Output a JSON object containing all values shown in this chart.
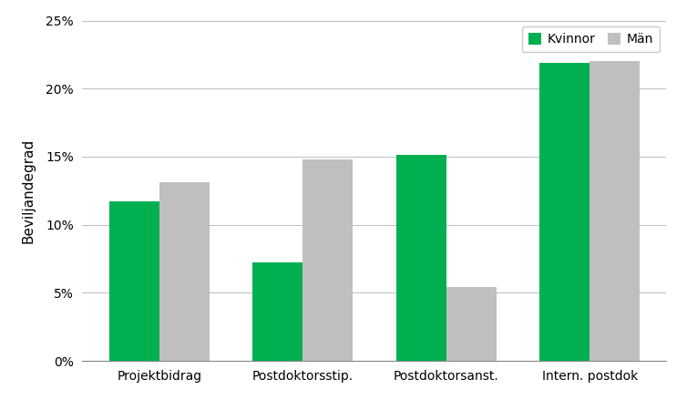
{
  "categories": [
    "Projektbidrag",
    "Postdoktorsstip.",
    "Postdoktorsanst.",
    "Intern. postdok"
  ],
  "kvinnor": [
    0.117,
    0.072,
    0.151,
    0.219
  ],
  "man": [
    0.131,
    0.148,
    0.054,
    0.22
  ],
  "color_kvinnor": "#00b050",
  "color_man": "#bfbfbf",
  "ylabel": "Beviljandegrad",
  "ylim": [
    0,
    0.25
  ],
  "yticks": [
    0,
    0.05,
    0.1,
    0.15,
    0.2,
    0.25
  ],
  "legend_labels": [
    "Kvinnor",
    "Män"
  ],
  "bar_width": 0.35,
  "background_color": "#ffffff",
  "grid_color": "#bbbbbb"
}
